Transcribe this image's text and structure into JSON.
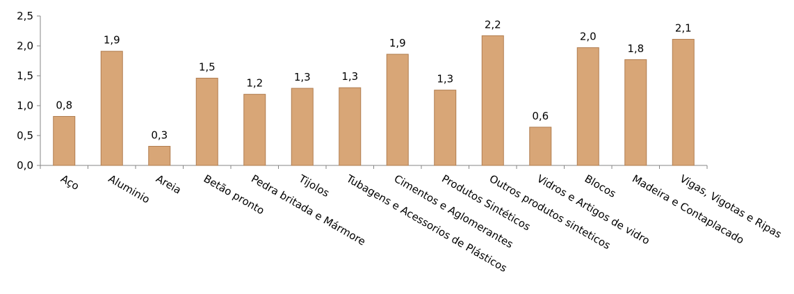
{
  "chart_data": {
    "type": "bar",
    "title": "",
    "xlabel": "",
    "ylabel": "",
    "categories": [
      "Aço",
      "Aluminio",
      "Areia",
      "Betão pronto",
      "Pedra britada e Mármore",
      "Tijolos",
      "Tubagens e Acessorios de Plásticos",
      "Cimentos e Aglomerantes",
      "Produtos Sintéticos",
      "Outros produtos sinteticos",
      "Vidros e Artigos de vidro",
      "Blocos",
      "Madeira e Contaplacado",
      "Vigas, Vigotas e Ripas"
    ],
    "values": [
      0.82,
      1.91,
      0.32,
      1.46,
      1.19,
      1.29,
      1.3,
      1.86,
      1.26,
      2.17,
      0.64,
      1.97,
      1.77,
      2.11
    ],
    "data_labels": [
      "0,8",
      "1,9",
      "0,3",
      "1,5",
      "1,2",
      "1,3",
      "1,3",
      "1,9",
      "1,3",
      "2,2",
      "0,6",
      "2,0",
      "1,8",
      "2,1"
    ],
    "ylim": [
      0,
      2.5
    ],
    "yticks": [
      0,
      0.5,
      1.0,
      1.5,
      2.0,
      2.5
    ],
    "ytick_labels": [
      "0,0",
      "0,5",
      "1,0",
      "1,5",
      "2,0",
      "2,5"
    ],
    "grid": false,
    "legend": "none",
    "bar_color": "#d8a677",
    "bar_edge_color": "#b07c4e"
  }
}
